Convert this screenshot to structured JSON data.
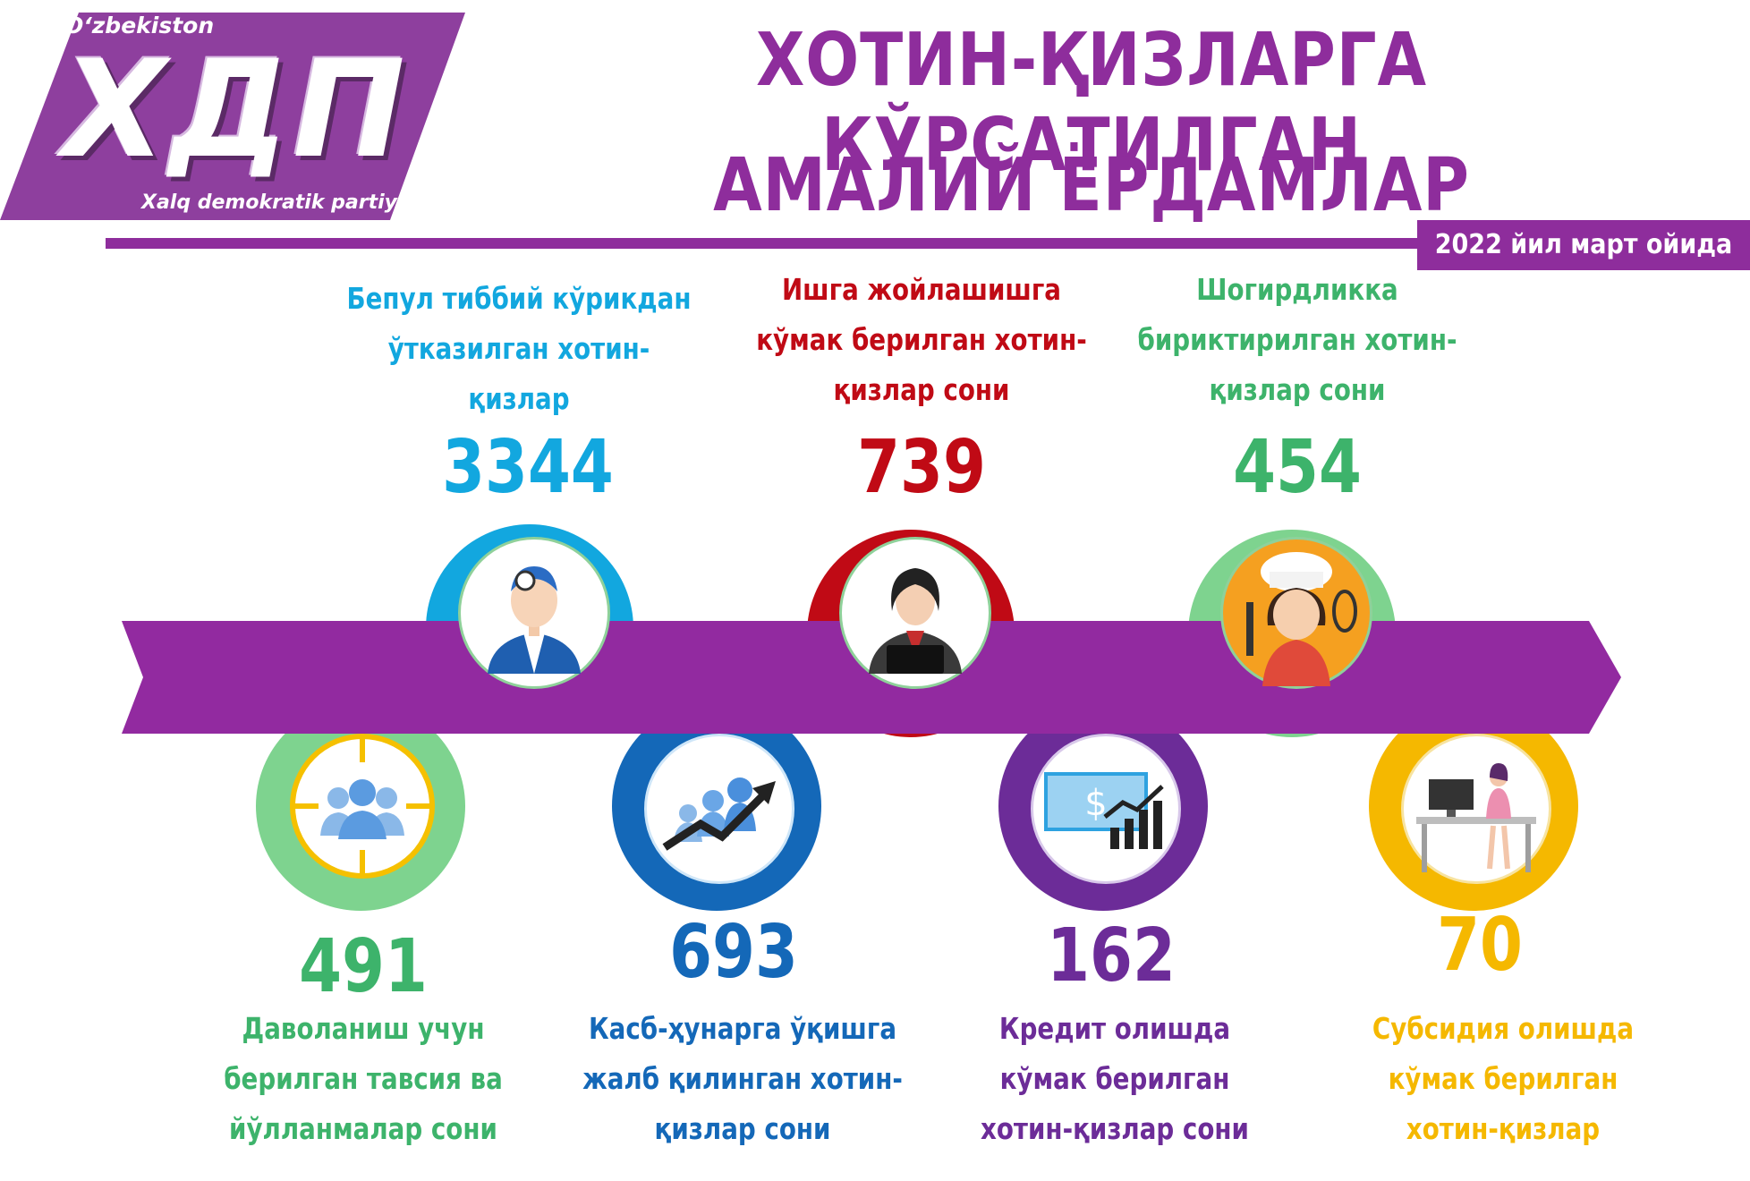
{
  "logo": {
    "top": "O‘zbekiston",
    "big": "ХДП",
    "bottom": "Xalq demokratik partiyasi"
  },
  "title": {
    "line1": "ХОТИН-ҚИЗЛАРГА КЎРСАТИЛГАН",
    "line2": "АМАЛИЙ ЁРДАМЛАР"
  },
  "date": "2022 йил  март ойида",
  "colors": {
    "purple": "#8e2d9c",
    "banner": "#922aa0",
    "cyan": "#12a7df",
    "red": "#c00a15",
    "green": "#3db36b",
    "blue": "#1468b8",
    "violet": "#6c2c98",
    "yellow": "#f5b800"
  },
  "stats": [
    {
      "id": "medical",
      "value": "3344",
      "lines": [
        "Бепул тиббий кўрикдан",
        "ўтказилган хотин- қизлар"
      ],
      "icon": "doctor-icon"
    },
    {
      "id": "employment",
      "value": "739",
      "lines": [
        "Ишга жойлашишга",
        "кўмак берилган хотин-",
        "қизлар сони"
      ],
      "icon": "businesswoman-icon"
    },
    {
      "id": "apprentice",
      "value": "454",
      "lines": [
        "Шогирдликка",
        "бириктирилган хотин-",
        "қизлар сони"
      ],
      "icon": "chef-woman-icon"
    },
    {
      "id": "treatment",
      "value": "491",
      "lines": [
        "Даволаниш учун",
        "берилган тавсия ва",
        "йўлланмалар сони"
      ],
      "icon": "target-people-icon"
    },
    {
      "id": "vocational",
      "value": "693",
      "lines": [
        "Касб-ҳунарга ўқишга",
        "жалб қилинган хотин-",
        "қизлар сони"
      ],
      "icon": "growth-people-icon"
    },
    {
      "id": "credit",
      "value": "162",
      "lines": [
        "Кредит олишда",
        "кўмак берилган",
        "хотин-қизлар сони"
      ],
      "icon": "money-chart-icon"
    },
    {
      "id": "subsidy",
      "value": "70",
      "lines": [
        "Субсидия олишда",
        "кўмак берилган",
        "хотин-қизлар"
      ],
      "icon": "woman-desk-icon"
    }
  ]
}
